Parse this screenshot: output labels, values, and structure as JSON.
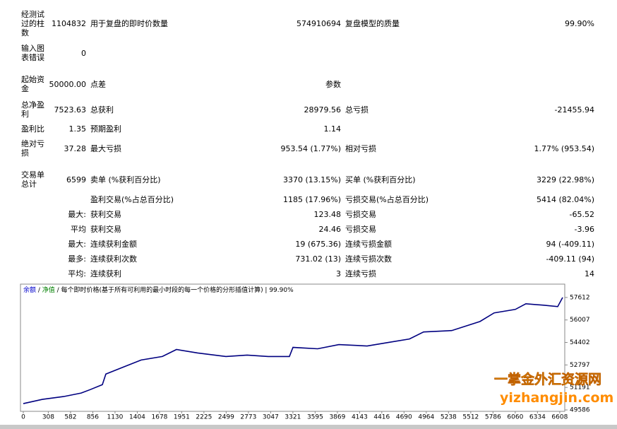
{
  "report": {
    "rows": [
      {
        "label": "经测试过的柱数",
        "value": "1104832",
        "items": [
          {
            "label": "用于复盘的即时价数量",
            "value": "574910694"
          },
          {
            "label": "复盘模型的质量",
            "value": "99.90%"
          }
        ]
      },
      {
        "label": "输入图表错误",
        "value": "0",
        "items": []
      },
      {
        "label": "起始资金",
        "value": "50000.00",
        "items": [
          {
            "label": "点差",
            "value": "参数"
          }
        ]
      },
      {
        "label": "总净盈利",
        "value": "7523.63",
        "items": [
          {
            "label": "总获利",
            "value": "28979.56"
          },
          {
            "label": "总亏损",
            "value": "-21455.94"
          }
        ]
      },
      {
        "label": "盈利比",
        "value": "1.35",
        "items": [
          {
            "label": "预期盈利",
            "value": "1.14"
          }
        ]
      },
      {
        "label": "绝对亏损",
        "value": "37.28",
        "items": [
          {
            "label": "最大亏损",
            "value": "953.54 (1.77%)"
          },
          {
            "label": "相对亏损",
            "value": "1.77% (953.54)"
          }
        ]
      },
      {
        "label": "交易单总计",
        "value": "6599",
        "items": [
          {
            "label": "卖单 (%获利百分比)",
            "value": "3370 (13.15%)"
          },
          {
            "label": "买单 (%获利百分比)",
            "value": "3229 (22.98%)"
          }
        ]
      },
      {
        "items": [
          {
            "label": "盈利交易(%占总百分比)",
            "value": "1185 (17.96%)"
          },
          {
            "label": "亏损交易(%占总百分比)",
            "value": "5414 (82.04%)"
          }
        ]
      },
      {
        "sublabel": "最大:",
        "items": [
          {
            "label": "获利交易",
            "value": "123.48"
          },
          {
            "label": "亏损交易",
            "value": "-65.52"
          }
        ]
      },
      {
        "sublabel": "平均",
        "items": [
          {
            "label": "获利交易",
            "value": "24.46"
          },
          {
            "label": "亏损交易",
            "value": "-3.96"
          }
        ]
      },
      {
        "sublabel": "最大:",
        "items": [
          {
            "label": "连续获利金额",
            "value": "19 (675.36)"
          },
          {
            "label": "连续亏损金额",
            "value": "94 (-409.11)"
          }
        ]
      },
      {
        "sublabel": "最多:",
        "items": [
          {
            "label": "连续获利次数",
            "value": "731.02 (13)"
          },
          {
            "label": "连续亏损次数",
            "value": "-409.11 (94)"
          }
        ]
      },
      {
        "sublabel": "平均:",
        "items": [
          {
            "label": "连续获利",
            "value": "3"
          },
          {
            "label": "连续亏损",
            "value": "14"
          }
        ]
      }
    ]
  },
  "chart": {
    "type": "line",
    "header": [
      {
        "text": "余额",
        "color": "#0000cc"
      },
      {
        "text": " / ",
        "color": "#000000"
      },
      {
        "text": "净值",
        "color": "#008000"
      },
      {
        "text": " / 每个即时价格(基于所有可利用的最小时段的每一个价格的分形插值计算) | 99.90%",
        "color": "#000000"
      }
    ],
    "x": [
      0,
      235,
      496,
      713,
      826,
      974,
      1017,
      1235,
      1452,
      1713,
      1887,
      2148,
      2496,
      2757,
      3017,
      3278,
      3322,
      3626,
      3887,
      4235,
      4496,
      4757,
      4931,
      5278,
      5626,
      5800,
      6061,
      6191,
      6409,
      6583,
      6644
    ],
    "series": [
      {
        "color": "#000080",
        "values": [
          50039,
          50340,
          50540,
          50790,
          51040,
          51390,
          52146,
          52650,
          53150,
          53400,
          53900,
          53650,
          53400,
          53500,
          53400,
          53400,
          54050,
          53950,
          54250,
          54150,
          54400,
          54650,
          55150,
          55250,
          55900,
          56510,
          56760,
          57160,
          57060,
          56960,
          57612
        ]
      }
    ],
    "xlim": [
      0,
      6670
    ],
    "xticks": [
      0,
      308,
      582,
      856,
      1130,
      1404,
      1678,
      1951,
      2225,
      2499,
      2773,
      3047,
      3321,
      3595,
      3869,
      4143,
      4416,
      4690,
      4964,
      5238,
      5512,
      5786,
      6060,
      6334,
      6608
    ],
    "ylim": [
      49486,
      58565
    ],
    "yticks": [
      49586,
      51191,
      52797,
      54402,
      56007,
      57612
    ]
  },
  "watermark": {
    "title": "一掌金外汇资源网",
    "url": "yizhangjin.com"
  }
}
